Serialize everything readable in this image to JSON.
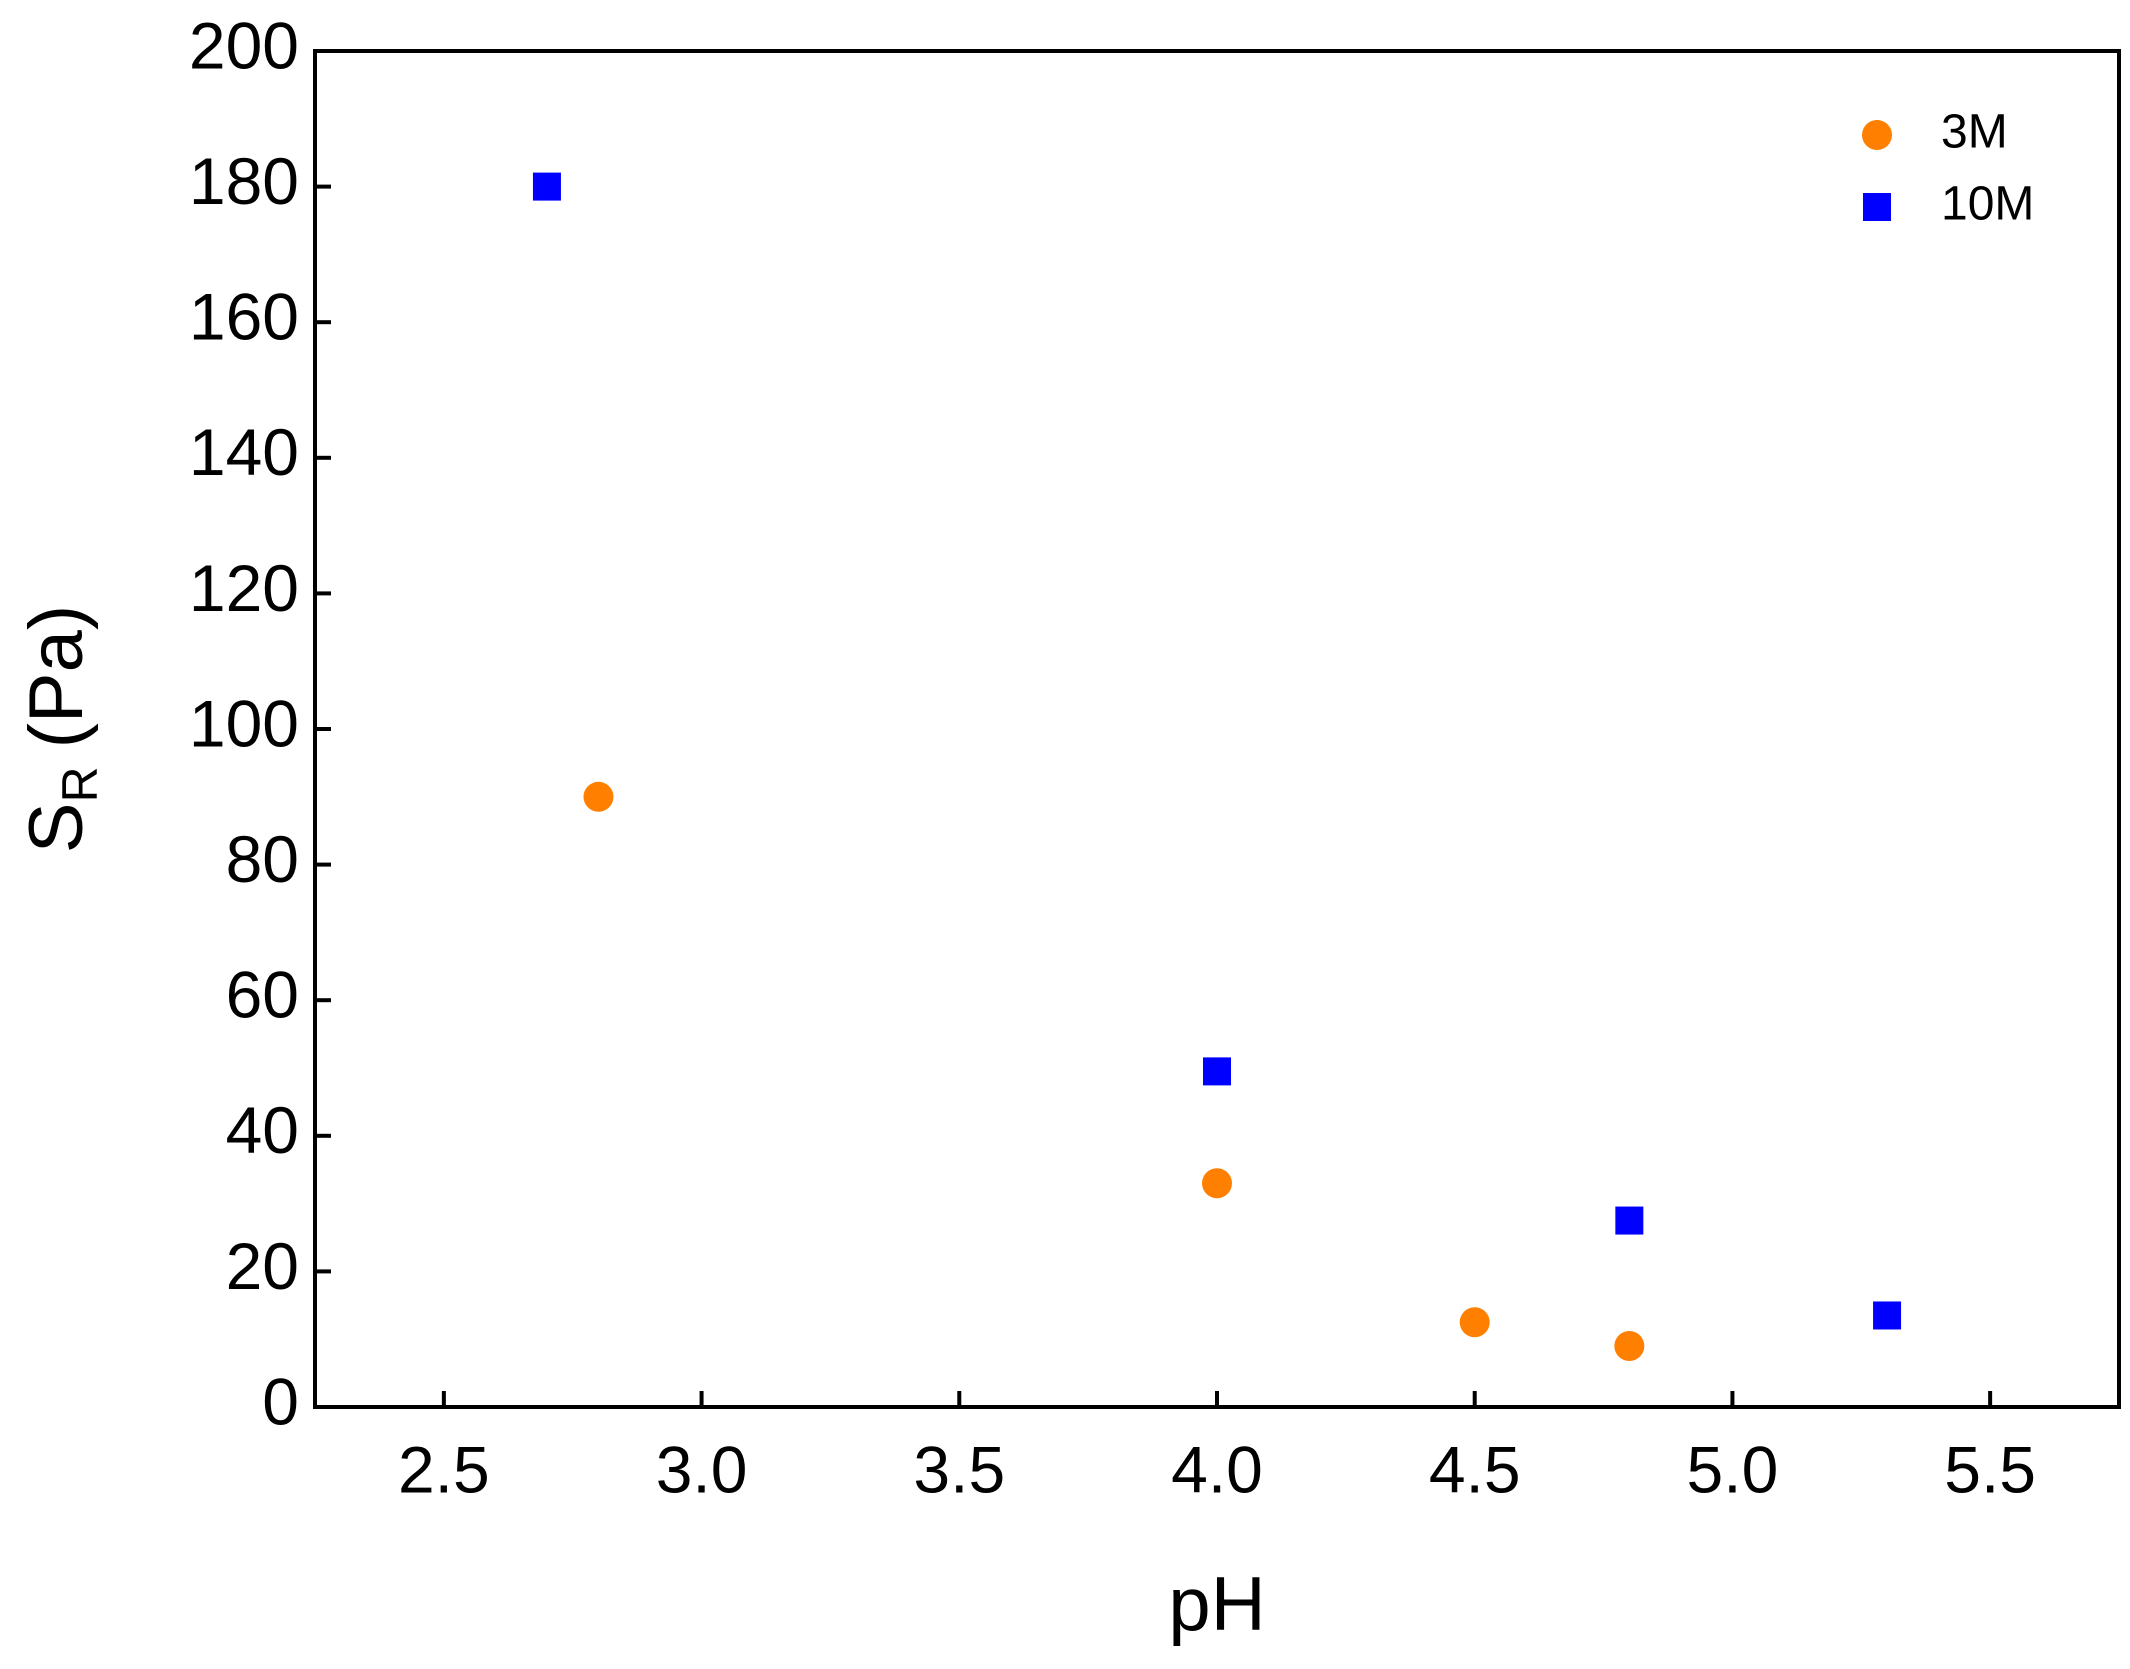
{
  "chart_data": {
    "type": "scatter",
    "x_label": "pH",
    "y_label": {
      "main": "S",
      "subscript": "R",
      "unit": "(Pa)"
    },
    "series": [
      {
        "name": "3M",
        "color": "#ff8000",
        "marker": "circle",
        "x": [
          2.8,
          4.0,
          4.5,
          4.8
        ],
        "values": [
          90,
          33,
          12.5,
          9
        ]
      },
      {
        "name": "10M",
        "color": "#0000ff",
        "marker": "square",
        "x": [
          2.7,
          4.0,
          4.8,
          5.3
        ],
        "values": [
          180,
          49.5,
          27.5,
          13.5
        ]
      }
    ],
    "xlim": [
      2.25,
      5.75
    ],
    "xticks": [
      2.5,
      {
        "value": 3,
        "label": "3.0"
      },
      3.5,
      {
        "value": 4,
        "label": "4.0"
      },
      4.5,
      {
        "value": 5,
        "label": "5.0"
      },
      5.5
    ],
    "ylim": [
      0,
      200
    ],
    "yticks": [
      0,
      20,
      40,
      60,
      80,
      100,
      120,
      140,
      160,
      180,
      200
    ],
    "grid": false,
    "legend": "upper right"
  }
}
